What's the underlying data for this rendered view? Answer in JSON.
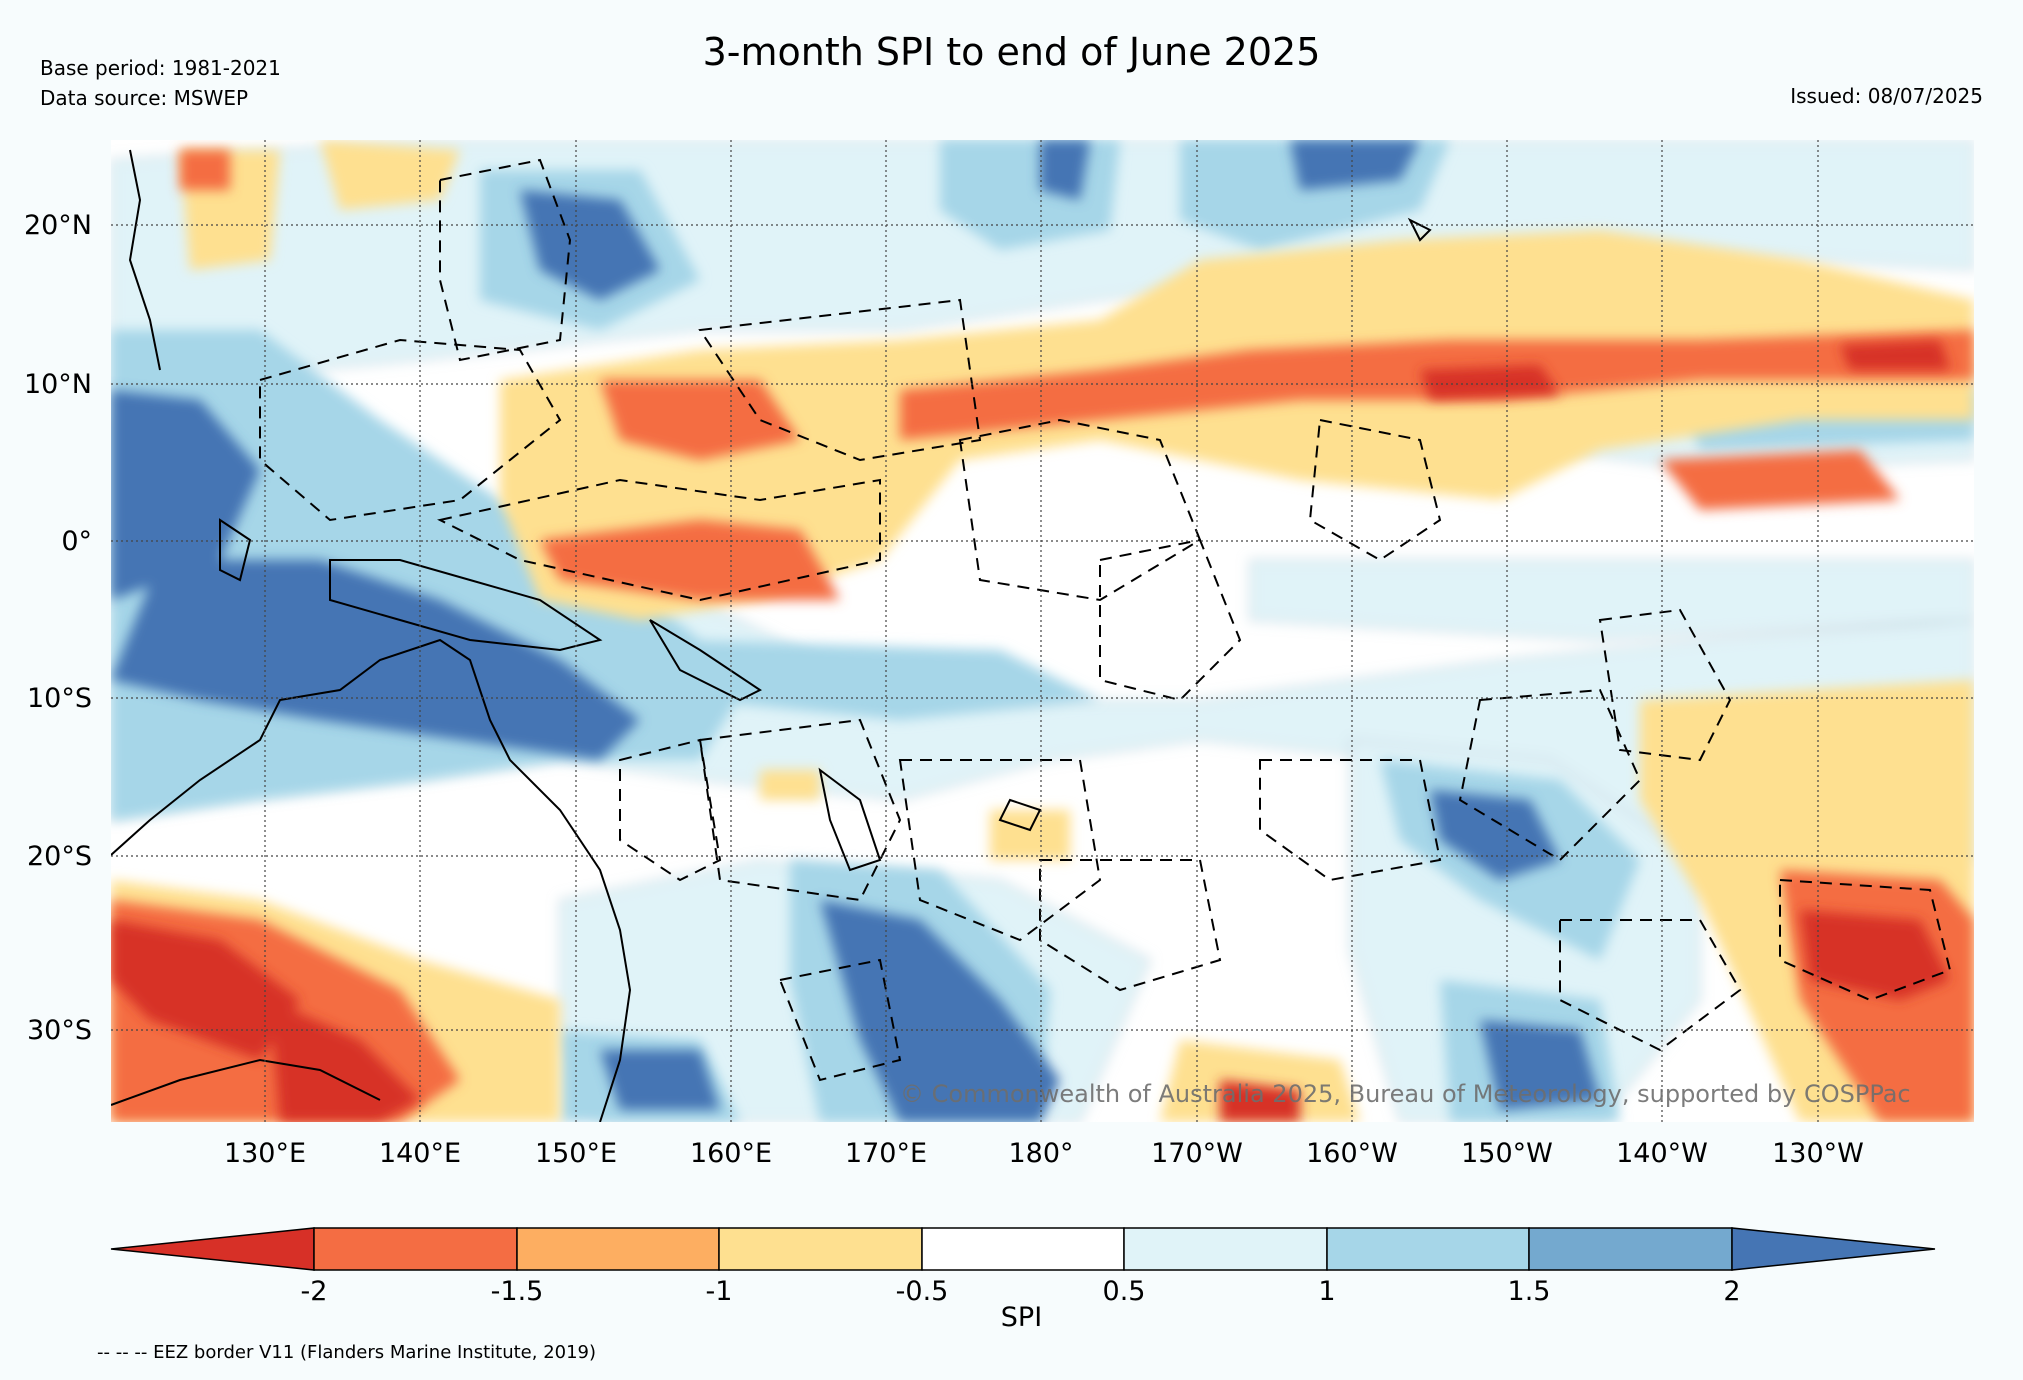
{
  "header": {
    "title": "3-month SPI to end of June 2025",
    "base_period": "Base period: 1981-2021",
    "data_source": "Data source: MSWEP",
    "issued": "Issued: 08/07/2025"
  },
  "map": {
    "lat_labels": [
      "20°N",
      "10°N",
      "0°",
      "10°S",
      "20°S",
      "30°S"
    ],
    "lon_labels": [
      "130°E",
      "140°E",
      "150°E",
      "160°E",
      "170°E",
      "180°",
      "170°W",
      "160°W",
      "150°W",
      "140°W",
      "130°W"
    ],
    "copyright": "© Commonwealth of Australia 2025, Bureau of Meteorology, supported by COSPPac",
    "colors": {
      "ocean_bg": "#f7fcfd",
      "very_wet": "#4575b4",
      "wet": "#74a9cf",
      "moderately_wet": "#a6d6e8",
      "slightly_wet": "#e0f3f8",
      "near_normal": "#ffffff",
      "slightly_dry": "#fee090",
      "moderately_dry": "#fdae61",
      "dry": "#f46d43",
      "very_dry": "#d73027"
    }
  },
  "colorbar": {
    "ticks": [
      "-2",
      "-1.5",
      "-1",
      "-0.5",
      "0.5",
      "1",
      "1.5",
      "2"
    ],
    "label": "SPI",
    "segments": [
      "#d73027",
      "#f46d43",
      "#fdae61",
      "#fee090",
      "#ffffff",
      "#e0f3f8",
      "#a6d6e8",
      "#74a9cf",
      "#4575b4"
    ]
  },
  "footer": {
    "eez_note": "-- -- -- EEZ border V11 (Flanders Marine Institute, 2019)"
  }
}
